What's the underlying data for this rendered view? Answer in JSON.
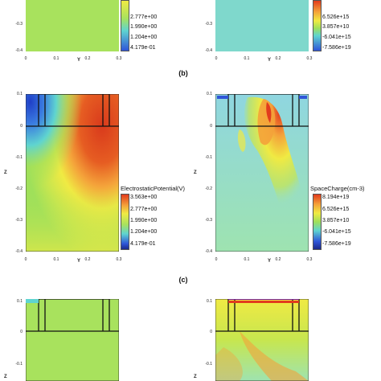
{
  "captions": {
    "b": "(b)",
    "c": "(c)"
  },
  "axis": {
    "x_label": "Y",
    "y_label": "Z",
    "x_ticks": [
      "0",
      "0.1",
      "0.2",
      "0.3"
    ],
    "y_ticks_top": [
      "-0.3",
      "-0.4"
    ],
    "y_ticks_mid": [
      "0.1",
      "0",
      "-0.1",
      "-0.2",
      "-0.3",
      "-0.4"
    ],
    "y_ticks_bot": [
      "0.1",
      "0",
      "-0.1"
    ]
  },
  "potential_legend": {
    "title": "ElectrostaticPotential(V)",
    "values": [
      "3.563e+00",
      "2.777e+00",
      "1.990e+00",
      "1.204e+00",
      "4.179e-01"
    ],
    "top_partial": [
      "3.563e+00",
      "2.777e+00",
      "1.990e+00",
      "1.204e+00",
      "4.179e-01"
    ]
  },
  "charge_legend": {
    "title": "SpaceCharge(cm-3)",
    "values": [
      "8.194e+19",
      "6.526e+15",
      "3.857e+10",
      "-6.041e+15",
      "-7.586e+19"
    ],
    "top_partial": [
      "8.194e+19",
      "6.526e+15",
      "3.857e+10",
      "-6.041e+15",
      "-7.586e+19"
    ]
  },
  "colors": {
    "red": "#e23b1d",
    "orange": "#f4a23a",
    "yellow": "#f0ea43",
    "green": "#9fe05a",
    "cyan": "#5fd4d0",
    "blue": "#2f55d8",
    "navy": "#1c2a8a"
  }
}
